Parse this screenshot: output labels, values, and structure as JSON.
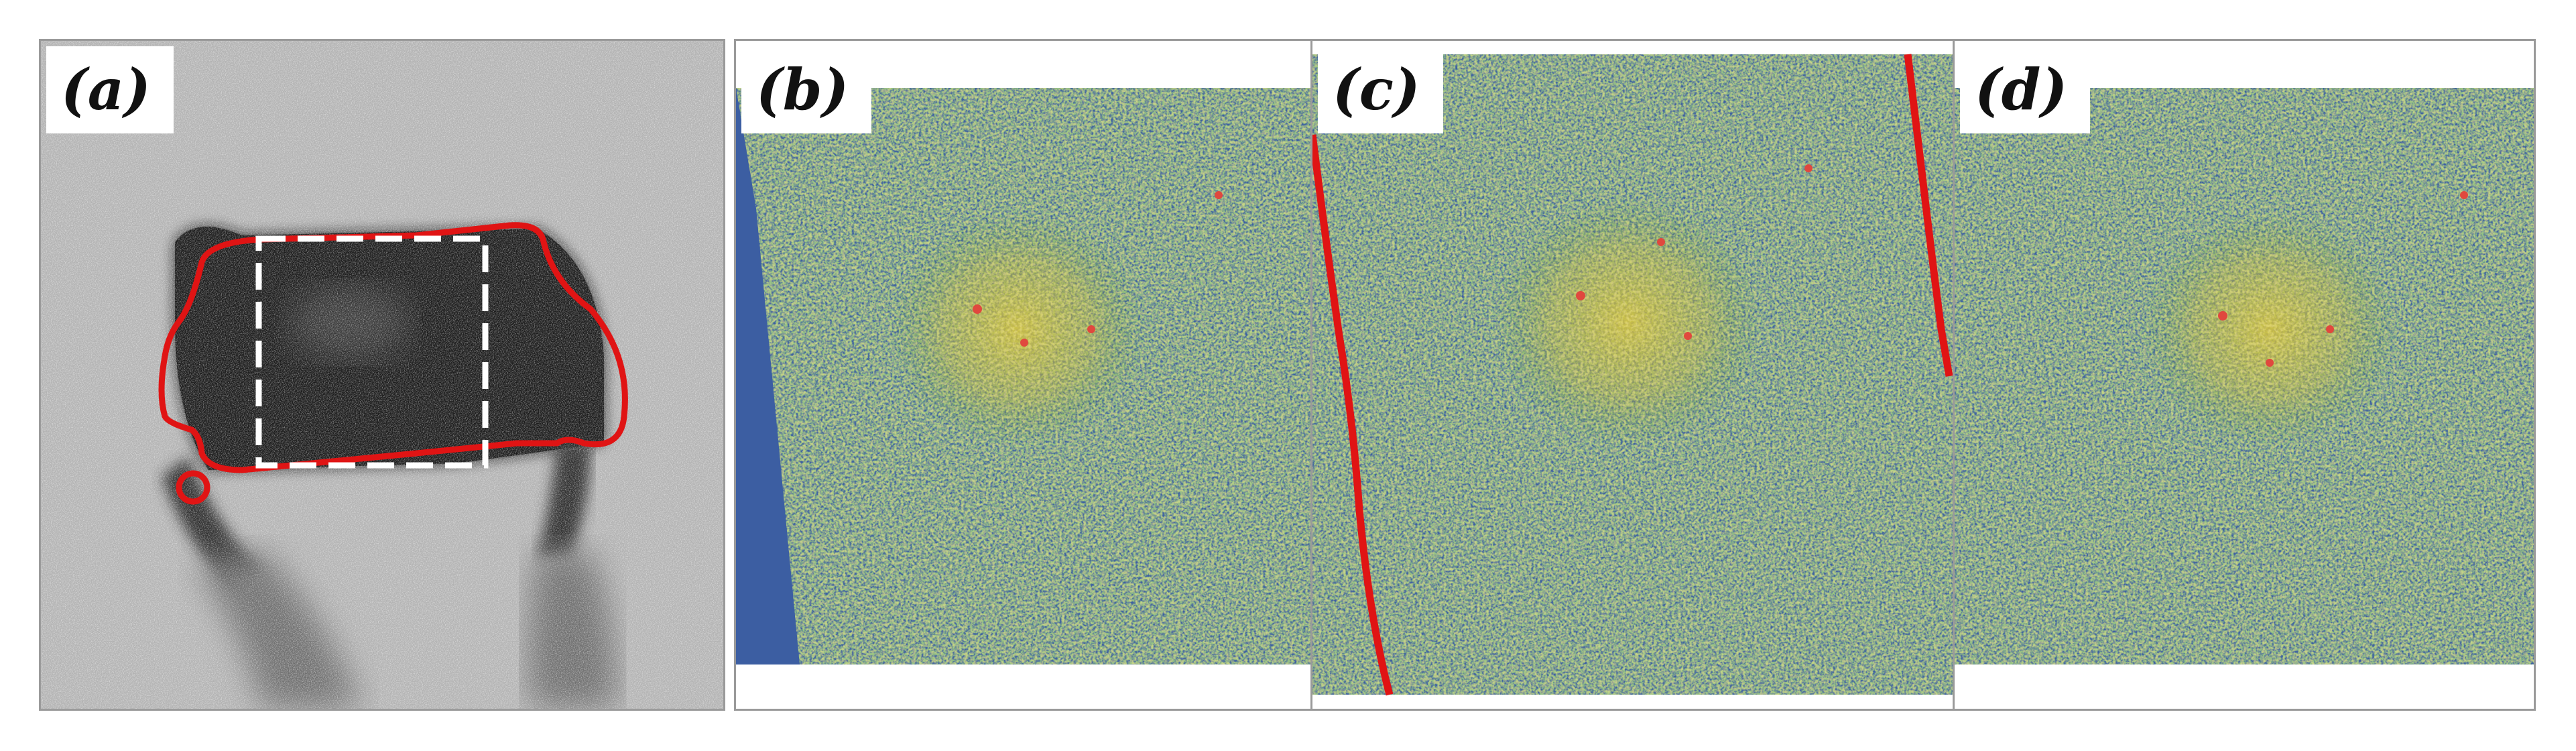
{
  "panels": [
    {
      "id": "a",
      "label": "(a)",
      "kind": "grayscale-micrograph"
    },
    {
      "id": "b",
      "label": "(b)",
      "kind": "heatmap"
    },
    {
      "id": "c",
      "label": "(c)",
      "kind": "heatmap-with-red-boundaries"
    },
    {
      "id": "d",
      "label": "(d)",
      "kind": "heatmap"
    }
  ],
  "colors": {
    "heatmap_low": "#3c5ea2",
    "heatmap_mid": "#4f8a3a",
    "heatmap_high": "#d6c23f",
    "heatmap_peak": "#e0483e",
    "outline_red": "#e01414",
    "roi_box": "#ffffff",
    "frame": "#9a9a9a"
  },
  "icons": [
    "red-contour-outline",
    "dashed-roi-box",
    "red-boundary-line"
  ]
}
